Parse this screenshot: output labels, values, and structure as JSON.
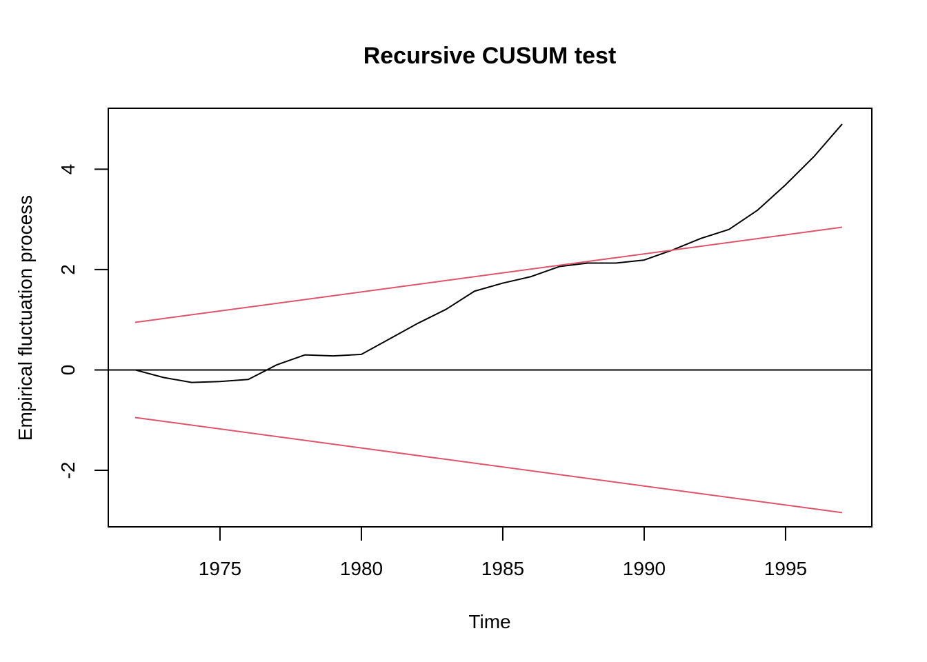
{
  "chart_data": {
    "type": "line",
    "title": "Recursive CUSUM test",
    "xlabel": "Time",
    "ylabel": "Empirical fluctuation process",
    "xlim": [
      1971.05,
      1998.05
    ],
    "ylim": [
      -3.127,
      5.215
    ],
    "x_ticks": [
      1975,
      1980,
      1985,
      1990,
      1995
    ],
    "y_ticks": [
      -2,
      0,
      2,
      4
    ],
    "grid": false,
    "legend": "none",
    "reference_line": {
      "y": 0,
      "color": "#000000"
    },
    "series": [
      {
        "color": "#000000",
        "x": [
          1972,
          1973,
          1974,
          1975,
          1976,
          1977,
          1978,
          1979,
          1980,
          1981,
          1982,
          1983,
          1984,
          1985,
          1986,
          1987,
          1988,
          1989,
          1990,
          1991,
          1992,
          1993,
          1994,
          1995,
          1996,
          1997
        ],
        "y": [
          0,
          -0.15,
          -0.25,
          -0.23,
          -0.19,
          0.1,
          0.3,
          0.28,
          0.31,
          0.62,
          0.93,
          1.21,
          1.57,
          1.73,
          1.86,
          2.06,
          2.13,
          2.13,
          2.19,
          2.39,
          2.62,
          2.8,
          3.18,
          3.69,
          4.25,
          4.9
        ]
      },
      {
        "color": "#DF536B",
        "x": [
          1972,
          1997
        ],
        "y": [
          0.948,
          2.844
        ]
      },
      {
        "color": "#DF536B",
        "x": [
          1972,
          1997
        ],
        "y": [
          -0.948,
          -2.844
        ]
      }
    ]
  }
}
